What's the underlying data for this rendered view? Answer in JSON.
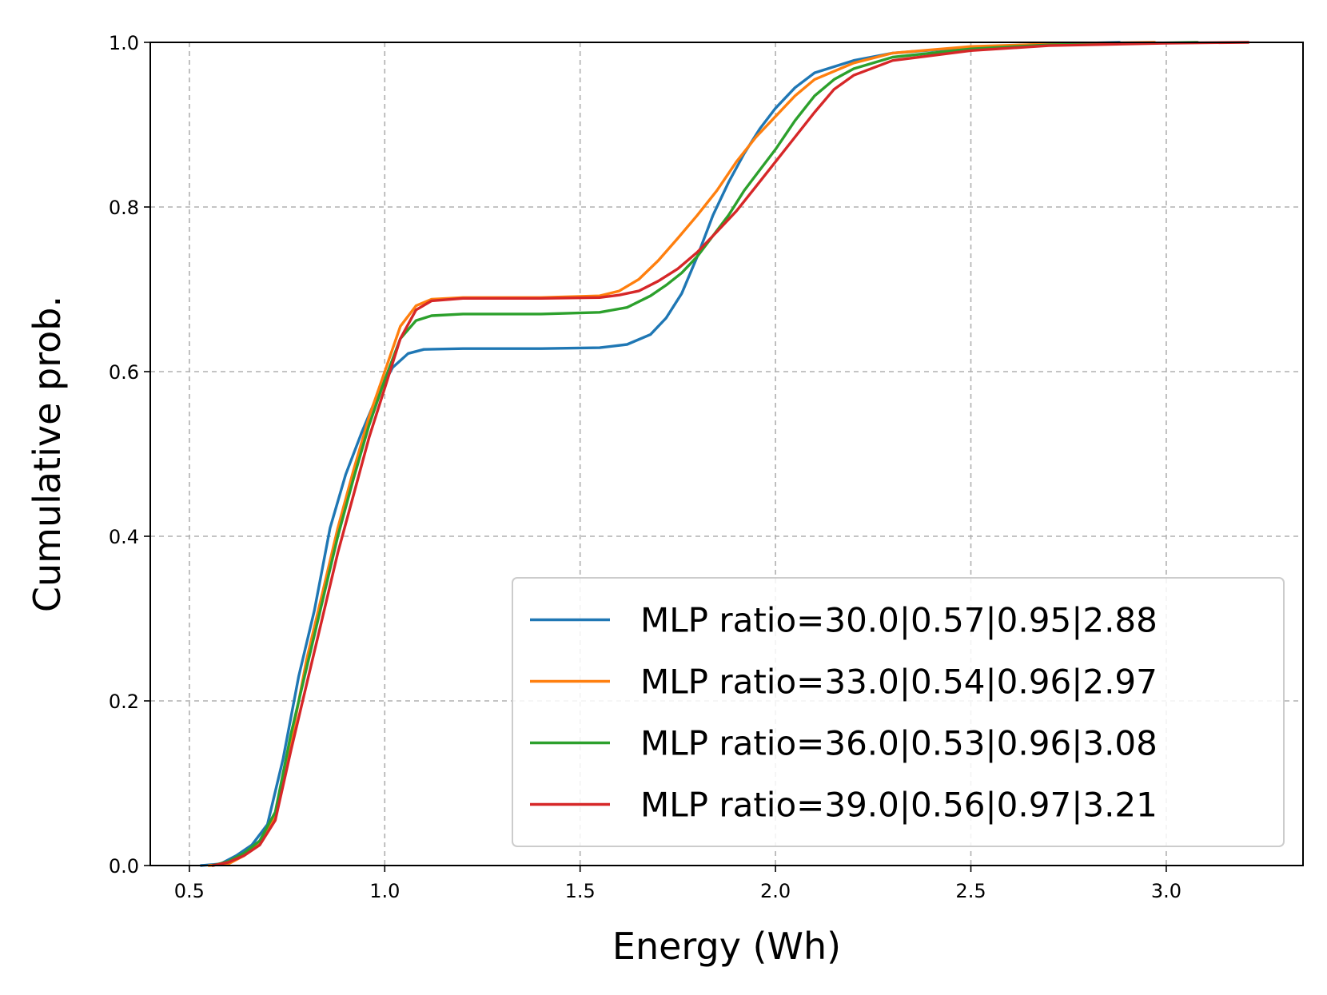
{
  "chart_data": {
    "type": "line",
    "title": "",
    "xlabel": "Energy (Wh)",
    "ylabel": "Cumulative prob.",
    "xlim": [
      0.4,
      3.35
    ],
    "ylim": [
      0.0,
      1.0
    ],
    "grid": true,
    "legend_position": "lower-right",
    "xticks": [
      0.5,
      1.0,
      1.5,
      2.0,
      2.5,
      3.0
    ],
    "xtick_labels": [
      "0.5",
      "1.0",
      "1.5",
      "2.0",
      "2.5",
      "3.0"
    ],
    "yticks": [
      0.0,
      0.2,
      0.4,
      0.6,
      0.8,
      1.0
    ],
    "ytick_labels": [
      "0.0",
      "0.2",
      "0.4",
      "0.6",
      "0.8",
      "1.0"
    ],
    "series": [
      {
        "name": "MLP ratio=30.0|0.57|0.95|2.88",
        "color": "#1f77b4",
        "points": [
          [
            0.53,
            0.0
          ],
          [
            0.58,
            0.002
          ],
          [
            0.62,
            0.012
          ],
          [
            0.66,
            0.025
          ],
          [
            0.7,
            0.05
          ],
          [
            0.74,
            0.13
          ],
          [
            0.78,
            0.23
          ],
          [
            0.82,
            0.31
          ],
          [
            0.86,
            0.41
          ],
          [
            0.9,
            0.475
          ],
          [
            0.94,
            0.525
          ],
          [
            0.98,
            0.57
          ],
          [
            1.02,
            0.605
          ],
          [
            1.06,
            0.622
          ],
          [
            1.1,
            0.627
          ],
          [
            1.2,
            0.628
          ],
          [
            1.4,
            0.628
          ],
          [
            1.55,
            0.629
          ],
          [
            1.62,
            0.633
          ],
          [
            1.68,
            0.645
          ],
          [
            1.72,
            0.665
          ],
          [
            1.76,
            0.695
          ],
          [
            1.8,
            0.74
          ],
          [
            1.84,
            0.79
          ],
          [
            1.88,
            0.83
          ],
          [
            1.92,
            0.865
          ],
          [
            1.96,
            0.895
          ],
          [
            2.0,
            0.92
          ],
          [
            2.05,
            0.945
          ],
          [
            2.1,
            0.963
          ],
          [
            2.2,
            0.978
          ],
          [
            2.3,
            0.987
          ],
          [
            2.5,
            0.994
          ],
          [
            2.7,
            0.998
          ],
          [
            2.88,
            1.0
          ]
        ]
      },
      {
        "name": "MLP ratio=33.0|0.54|0.96|2.97",
        "color": "#ff7f0e",
        "points": [
          [
            0.55,
            0.0
          ],
          [
            0.6,
            0.002
          ],
          [
            0.64,
            0.012
          ],
          [
            0.68,
            0.028
          ],
          [
            0.72,
            0.06
          ],
          [
            0.76,
            0.15
          ],
          [
            0.8,
            0.25
          ],
          [
            0.84,
            0.33
          ],
          [
            0.88,
            0.41
          ],
          [
            0.92,
            0.48
          ],
          [
            0.96,
            0.545
          ],
          [
            1.0,
            0.6
          ],
          [
            1.04,
            0.655
          ],
          [
            1.08,
            0.68
          ],
          [
            1.12,
            0.688
          ],
          [
            1.2,
            0.69
          ],
          [
            1.4,
            0.69
          ],
          [
            1.55,
            0.692
          ],
          [
            1.6,
            0.698
          ],
          [
            1.65,
            0.712
          ],
          [
            1.7,
            0.735
          ],
          [
            1.75,
            0.762
          ],
          [
            1.8,
            0.79
          ],
          [
            1.85,
            0.82
          ],
          [
            1.9,
            0.855
          ],
          [
            1.95,
            0.885
          ],
          [
            2.0,
            0.91
          ],
          [
            2.05,
            0.935
          ],
          [
            2.1,
            0.955
          ],
          [
            2.2,
            0.975
          ],
          [
            2.3,
            0.987
          ],
          [
            2.5,
            0.995
          ],
          [
            2.7,
            0.998
          ],
          [
            2.97,
            1.0
          ]
        ]
      },
      {
        "name": "MLP ratio=36.0|0.53|0.96|3.08",
        "color": "#2ca02c",
        "points": [
          [
            0.56,
            0.0
          ],
          [
            0.6,
            0.005
          ],
          [
            0.64,
            0.015
          ],
          [
            0.68,
            0.03
          ],
          [
            0.72,
            0.065
          ],
          [
            0.76,
            0.16
          ],
          [
            0.8,
            0.24
          ],
          [
            0.84,
            0.32
          ],
          [
            0.88,
            0.4
          ],
          [
            0.92,
            0.47
          ],
          [
            0.96,
            0.535
          ],
          [
            1.0,
            0.59
          ],
          [
            1.04,
            0.64
          ],
          [
            1.08,
            0.662
          ],
          [
            1.12,
            0.668
          ],
          [
            1.2,
            0.67
          ],
          [
            1.4,
            0.67
          ],
          [
            1.55,
            0.672
          ],
          [
            1.62,
            0.678
          ],
          [
            1.68,
            0.692
          ],
          [
            1.72,
            0.705
          ],
          [
            1.76,
            0.72
          ],
          [
            1.8,
            0.74
          ],
          [
            1.84,
            0.765
          ],
          [
            1.88,
            0.79
          ],
          [
            1.92,
            0.82
          ],
          [
            1.96,
            0.845
          ],
          [
            2.0,
            0.87
          ],
          [
            2.05,
            0.905
          ],
          [
            2.1,
            0.935
          ],
          [
            2.15,
            0.955
          ],
          [
            2.2,
            0.968
          ],
          [
            2.3,
            0.982
          ],
          [
            2.5,
            0.992
          ],
          [
            2.7,
            0.997
          ],
          [
            3.08,
            1.0
          ]
        ]
      },
      {
        "name": "MLP ratio=39.0|0.56|0.97|3.21",
        "color": "#d62728",
        "points": [
          [
            0.56,
            0.0
          ],
          [
            0.6,
            0.004
          ],
          [
            0.64,
            0.012
          ],
          [
            0.68,
            0.025
          ],
          [
            0.72,
            0.055
          ],
          [
            0.76,
            0.14
          ],
          [
            0.8,
            0.22
          ],
          [
            0.84,
            0.3
          ],
          [
            0.88,
            0.38
          ],
          [
            0.92,
            0.45
          ],
          [
            0.96,
            0.52
          ],
          [
            1.0,
            0.58
          ],
          [
            1.04,
            0.64
          ],
          [
            1.08,
            0.675
          ],
          [
            1.12,
            0.686
          ],
          [
            1.2,
            0.689
          ],
          [
            1.4,
            0.689
          ],
          [
            1.55,
            0.69
          ],
          [
            1.6,
            0.693
          ],
          [
            1.65,
            0.698
          ],
          [
            1.7,
            0.71
          ],
          [
            1.75,
            0.725
          ],
          [
            1.8,
            0.745
          ],
          [
            1.85,
            0.77
          ],
          [
            1.9,
            0.795
          ],
          [
            1.95,
            0.825
          ],
          [
            2.0,
            0.855
          ],
          [
            2.05,
            0.885
          ],
          [
            2.1,
            0.915
          ],
          [
            2.15,
            0.943
          ],
          [
            2.2,
            0.96
          ],
          [
            2.3,
            0.978
          ],
          [
            2.5,
            0.99
          ],
          [
            2.7,
            0.996
          ],
          [
            3.0,
            0.999
          ],
          [
            3.21,
            1.0
          ]
        ]
      }
    ]
  }
}
